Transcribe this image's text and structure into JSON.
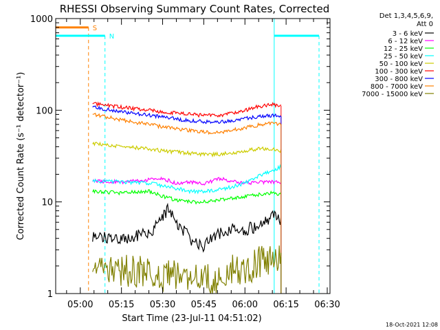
{
  "chart_data": {
    "type": "line",
    "title": "RHESSI Observing Summary Count Rates, Corrected",
    "xlabel": "Start Time (23-Jul-11 04:51:02)",
    "ylabel": "Corrected Count Rate (s⁻¹ detector⁻¹)",
    "footer": "18-Oct-2021 12:08",
    "yscale": "log",
    "ylim": [
      1,
      1000
    ],
    "ytick_labels": [
      "1",
      "10",
      "100",
      "1000"
    ],
    "ytick_values": [
      1,
      10,
      100,
      1000
    ],
    "xlim": [
      "04:51:02",
      "06:31:00"
    ],
    "xtick_labels": [
      "05:00",
      "05:15",
      "05:30",
      "05:45",
      "06:00",
      "06:15",
      "06:30"
    ],
    "legend": {
      "header": [
        "Det 1,3,4,5,6,9,",
        "Att 0"
      ],
      "placement": "right"
    },
    "data_window": [
      "05:04:30",
      "06:13:10"
    ],
    "annotations": [
      {
        "label": "S",
        "color": "#ff8000",
        "start": "04:51:02",
        "end": "05:03:00",
        "level": 800,
        "dashed_marker": "05:03:00"
      },
      {
        "label": "N",
        "color": "#00ffff",
        "start": "04:51:02",
        "end": "05:09:00",
        "level": 650,
        "dashed_marker": "05:09:00"
      },
      {
        "label": "",
        "color": "#00ffff",
        "start": "06:10:40",
        "end": "06:27:00",
        "level": 650,
        "dashed_marker": "06:27:00"
      }
    ],
    "solid_markers": [
      {
        "time": "06:10:40",
        "color": "#00ffff"
      }
    ],
    "series": [
      {
        "name": "3 - 6 keV",
        "color": "#000000",
        "values": {
          "05:05": 4.0,
          "05:15": 4.0,
          "05:25": 4.5,
          "05:30": 6.5,
          "05:32": 8.5,
          "05:35": 6.0,
          "05:40": 4.0,
          "05:45": 3.2,
          "05:50": 4.5,
          "05:55": 5.0,
          "06:00": 5.0,
          "06:05": 5.5,
          "06:10": 7.0,
          "06:13": 6.0
        }
      },
      {
        "name": "6 - 12 keV",
        "color": "#ff00ff",
        "values": {
          "05:05": 17,
          "05:15": 16.5,
          "05:25": 17.5,
          "05:30": 18,
          "05:35": 16,
          "05:40": 16.5,
          "05:45": 15.5,
          "05:50": 18,
          "05:55": 17,
          "06:00": 16,
          "06:05": 16.5,
          "06:10": 16.5,
          "06:13": 16
        }
      },
      {
        "name": "12 - 25 keV",
        "color": "#00ff00",
        "values": {
          "05:05": 13,
          "05:15": 12.5,
          "05:25": 13,
          "05:30": 11.5,
          "05:35": 10.5,
          "05:40": 10,
          "05:45": 10,
          "05:50": 10.5,
          "05:55": 11,
          "06:00": 11.5,
          "06:05": 12,
          "06:10": 12.5,
          "06:13": 12
        }
      },
      {
        "name": "25 - 50 keV",
        "color": "#00ffff",
        "values": {
          "05:05": 17,
          "05:15": 16.5,
          "05:25": 16,
          "05:30": 15,
          "05:35": 14,
          "05:40": 13,
          "05:45": 13,
          "05:50": 13.5,
          "05:55": 14.5,
          "06:00": 16,
          "06:05": 19,
          "06:10": 22,
          "06:13": 24
        }
      },
      {
        "name": "50 - 100 keV",
        "color": "#cccc00",
        "values": {
          "05:05": 43,
          "05:15": 40,
          "05:25": 38,
          "05:30": 36,
          "05:35": 35,
          "05:40": 34,
          "05:45": 33,
          "05:50": 33,
          "05:55": 34,
          "06:00": 36,
          "06:05": 38,
          "06:10": 38,
          "06:13": 36
        }
      },
      {
        "name": "100 - 300 keV",
        "color": "#ff0000",
        "values": {
          "05:05": 118,
          "05:15": 108,
          "05:25": 100,
          "05:30": 96,
          "05:35": 93,
          "05:40": 90,
          "05:45": 88,
          "05:50": 88,
          "05:55": 92,
          "06:00": 100,
          "06:05": 110,
          "06:10": 115,
          "06:13": 112
        }
      },
      {
        "name": "300 - 800 keV",
        "color": "#0000ff",
        "values": {
          "05:05": 108,
          "05:15": 96,
          "05:25": 88,
          "05:30": 84,
          "05:35": 80,
          "05:40": 77,
          "05:45": 75,
          "05:50": 74,
          "05:55": 77,
          "06:00": 81,
          "06:05": 86,
          "06:10": 88,
          "06:13": 85
        }
      },
      {
        "name": "800 - 7000 keV",
        "color": "#ff8000",
        "values": {
          "05:05": 90,
          "05:15": 78,
          "05:25": 70,
          "05:30": 66,
          "05:35": 63,
          "05:40": 60,
          "05:45": 58,
          "05:50": 57,
          "05:55": 60,
          "06:00": 64,
          "06:05": 69,
          "06:10": 72,
          "06:13": 70
        }
      },
      {
        "name": "7000 - 15000 keV",
        "color": "#808000",
        "values": {
          "05:05": 1.6,
          "05:15": 1.8,
          "05:25": 1.7,
          "05:30": 1.5,
          "05:35": 1.6,
          "05:40": 1.5,
          "05:45": 1.4,
          "05:50": 1.5,
          "05:55": 1.8,
          "06:00": 1.7,
          "06:05": 2.2,
          "06:10": 2.5,
          "06:13": 2.5
        }
      }
    ]
  }
}
